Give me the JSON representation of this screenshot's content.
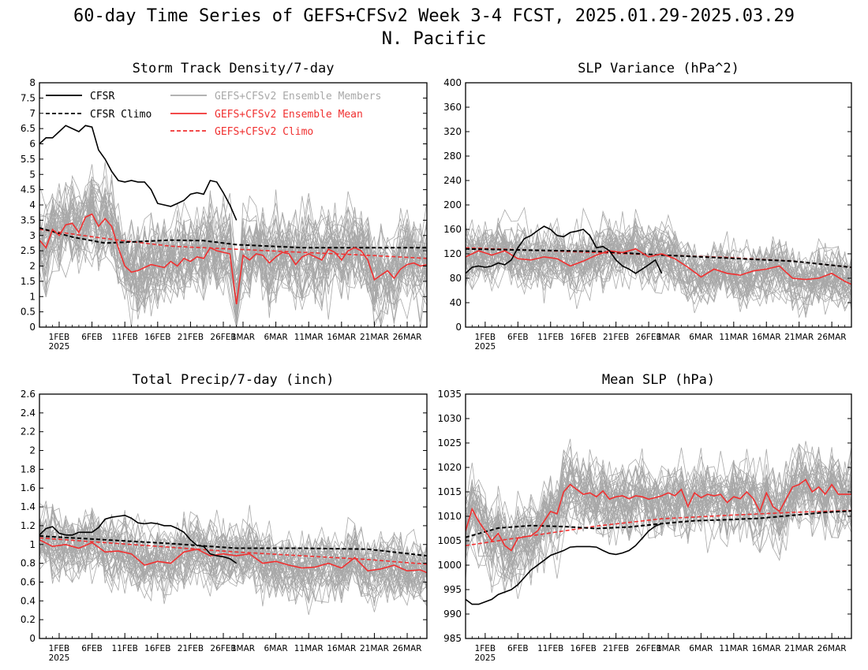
{
  "title_line1": "60-day Time Series of GEFS+CFSv2 Week 3-4 FCST, 2025.01.29-2025.03.29",
  "title_line2": "N. Pacific",
  "colors": {
    "cfsr": "#000000",
    "member": "#a8a8a8",
    "mean": "#f03030",
    "climo_model": "#f03030"
  },
  "legend": {
    "cfsr": "CFSR",
    "cfsr_climo": "CFSR Climo",
    "members": "GEFS+CFSv2 Ensemble Members",
    "mean": "GEFS+CFSv2 Ensemble Mean",
    "model_climo": "GEFS+CFSv2 Climo"
  },
  "x_ticks": [
    {
      "day": 3,
      "label": "1FEB",
      "sub": "2025"
    },
    {
      "day": 8,
      "label": "6FEB",
      "sub": ""
    },
    {
      "day": 13,
      "label": "11FEB",
      "sub": ""
    },
    {
      "day": 18,
      "label": "16FEB",
      "sub": ""
    },
    {
      "day": 23,
      "label": "21FEB",
      "sub": ""
    },
    {
      "day": 28,
      "label": "26FEB",
      "sub": ""
    },
    {
      "day": 31,
      "label": "1MAR",
      "sub": ""
    },
    {
      "day": 36,
      "label": "6MAR",
      "sub": ""
    },
    {
      "day": 41,
      "label": "11MAR",
      "sub": ""
    },
    {
      "day": 46,
      "label": "16MAR",
      "sub": ""
    },
    {
      "day": 51,
      "label": "21MAR",
      "sub": ""
    },
    {
      "day": 56,
      "label": "26MAR",
      "sub": ""
    }
  ],
  "chart_data": [
    {
      "type": "line",
      "title": "Storm Track Density/7-day",
      "ylim": [
        0,
        8
      ],
      "yticks": [
        "0",
        "0.5",
        "1",
        "1.5",
        "2",
        "2.5",
        "3",
        "3.5",
        "4",
        "4.5",
        "5",
        "5.5",
        "6",
        "6.5",
        "7",
        "7.5",
        "8"
      ],
      "xlim": [
        "2025-01-29",
        "2025-03-29"
      ],
      "member_spread": 0.85,
      "series": [
        {
          "key": "cfsr",
          "name": "CFSR",
          "x": [
            0,
            1,
            2,
            3,
            4,
            5,
            6,
            7,
            8,
            9,
            10,
            11,
            12,
            13,
            14,
            15,
            16,
            17,
            18,
            19,
            20,
            21,
            22,
            23,
            24,
            25,
            26,
            27,
            28,
            29,
            30
          ],
          "values": [
            6.0,
            6.2,
            6.2,
            6.4,
            6.6,
            6.5,
            6.4,
            6.6,
            6.55,
            5.8,
            5.5,
            5.1,
            4.8,
            4.75,
            4.8,
            4.75,
            4.75,
            4.5,
            4.05,
            4.0,
            3.95,
            4.05,
            4.15,
            4.35,
            4.4,
            4.35,
            4.8,
            4.75,
            4.4,
            4.0,
            3.5
          ]
        },
        {
          "key": "cfsr_climo",
          "name": "CFSR Climo",
          "x": [
            0,
            5,
            10,
            15,
            20,
            25,
            30,
            35,
            40,
            45,
            50,
            55,
            59
          ],
          "values": [
            3.25,
            2.95,
            2.75,
            2.8,
            2.85,
            2.83,
            2.7,
            2.65,
            2.6,
            2.6,
            2.6,
            2.6,
            2.6
          ]
        },
        {
          "key": "mean",
          "name": "GEFS+CFSv2 Ensemble Mean",
          "x": [
            0,
            1,
            2,
            3,
            4,
            5,
            6,
            7,
            8,
            9,
            10,
            11,
            12,
            13,
            14,
            15,
            16,
            17,
            18,
            19,
            20,
            21,
            22,
            23,
            24,
            25,
            26,
            27,
            28,
            29,
            30,
            31,
            32,
            33,
            34,
            35,
            36,
            37,
            38,
            39,
            40,
            41,
            42,
            43,
            44,
            45,
            46,
            47,
            48,
            49,
            50,
            51,
            52,
            53,
            54,
            55,
            56,
            57,
            58,
            59
          ],
          "values": [
            2.85,
            2.6,
            3.2,
            3.0,
            3.35,
            3.4,
            3.1,
            3.6,
            3.7,
            3.3,
            3.55,
            3.3,
            2.6,
            2.0,
            1.8,
            1.85,
            1.95,
            2.05,
            2.0,
            1.95,
            2.15,
            2.0,
            2.25,
            2.15,
            2.3,
            2.25,
            2.6,
            2.5,
            2.45,
            2.4,
            0.75,
            2.35,
            2.2,
            2.4,
            2.35,
            2.1,
            2.3,
            2.45,
            2.4,
            2.05,
            2.3,
            2.4,
            2.3,
            2.2,
            2.55,
            2.45,
            2.2,
            2.5,
            2.6,
            2.5,
            2.2,
            1.55,
            1.7,
            1.85,
            1.6,
            1.9,
            2.05,
            2.1,
            2.0,
            2.05
          ]
        },
        {
          "key": "climo_model",
          "name": "GEFS+CFSv2 Climo",
          "x": [
            0,
            10,
            20,
            30,
            40,
            50,
            59
          ],
          "values": [
            3.2,
            2.9,
            2.65,
            2.55,
            2.45,
            2.35,
            2.25
          ]
        }
      ]
    },
    {
      "type": "line",
      "title": "SLP Variance (hPa^2)",
      "ylim": [
        0,
        400
      ],
      "yticks": [
        "0",
        "40",
        "80",
        "120",
        "160",
        "200",
        "240",
        "280",
        "320",
        "360",
        "400"
      ],
      "xlim": [
        "2025-01-29",
        "2025-03-29"
      ],
      "member_spread": 28,
      "series": [
        {
          "key": "cfsr",
          "name": "CFSR",
          "x": [
            0,
            1,
            2,
            3,
            4,
            5,
            6,
            7,
            8,
            9,
            10,
            11,
            12,
            13,
            14,
            15,
            16,
            17,
            18,
            19,
            20,
            21,
            22,
            23,
            24,
            25,
            26,
            27,
            28,
            29,
            30
          ],
          "values": [
            88,
            98,
            100,
            98,
            100,
            105,
            102,
            110,
            130,
            145,
            150,
            158,
            165,
            160,
            150,
            148,
            155,
            157,
            160,
            150,
            130,
            132,
            125,
            110,
            100,
            95,
            88,
            95,
            102,
            110,
            88
          ]
        },
        {
          "key": "cfsr_climo",
          "name": "CFSR Climo",
          "x": [
            0,
            10,
            20,
            30,
            40,
            50,
            59
          ],
          "values": [
            128,
            126,
            124,
            118,
            113,
            108,
            98
          ]
        },
        {
          "key": "mean",
          "name": "GEFS+CFSv2 Ensemble Mean",
          "x": [
            0,
            2,
            4,
            6,
            8,
            10,
            12,
            14,
            16,
            18,
            20,
            22,
            24,
            26,
            28,
            30,
            32,
            34,
            36,
            38,
            40,
            42,
            44,
            46,
            48,
            50,
            52,
            54,
            56,
            58,
            59
          ],
          "values": [
            115,
            125,
            118,
            125,
            112,
            110,
            115,
            112,
            100,
            108,
            118,
            125,
            122,
            128,
            115,
            120,
            112,
            98,
            82,
            95,
            88,
            85,
            92,
            95,
            100,
            80,
            78,
            80,
            88,
            75,
            70
          ]
        },
        {
          "key": "climo_model",
          "name": "GEFS+CFSv2 Climo",
          "x": [
            0,
            10,
            20,
            30,
            40,
            50,
            59
          ],
          "values": [
            130,
            126,
            122,
            118,
            114,
            108,
            98
          ]
        }
      ]
    },
    {
      "type": "line",
      "title": "Total Precip/7-day (inch)",
      "ylim": [
        0,
        2.6
      ],
      "yticks": [
        "0",
        "0.2",
        "0.4",
        "0.6",
        "0.8",
        "1",
        "1.2",
        "1.4",
        "1.6",
        "1.8",
        "2",
        "2.2",
        "2.4",
        "2.6"
      ],
      "xlim": [
        "2025-01-29",
        "2025-03-29"
      ],
      "member_spread": 0.2,
      "series": [
        {
          "key": "cfsr",
          "name": "CFSR",
          "x": [
            0,
            1,
            2,
            3,
            4,
            5,
            6,
            7,
            8,
            9,
            10,
            11,
            12,
            13,
            14,
            15,
            16,
            17,
            18,
            19,
            20,
            21,
            22,
            23,
            24,
            25,
            26,
            27,
            28,
            29,
            30
          ],
          "values": [
            1.1,
            1.17,
            1.19,
            1.12,
            1.1,
            1.1,
            1.13,
            1.13,
            1.13,
            1.18,
            1.27,
            1.29,
            1.3,
            1.31,
            1.28,
            1.23,
            1.22,
            1.23,
            1.22,
            1.2,
            1.2,
            1.17,
            1.13,
            1.05,
            0.99,
            0.98,
            0.9,
            0.88,
            0.87,
            0.85,
            0.8
          ]
        },
        {
          "key": "cfsr_climo",
          "name": "CFSR Climo",
          "x": [
            0,
            10,
            20,
            30,
            40,
            50,
            59
          ],
          "values": [
            1.09,
            1.05,
            1.01,
            0.96,
            0.96,
            0.95,
            0.88
          ]
        },
        {
          "key": "mean",
          "name": "GEFS+CFSv2 Ensemble Mean",
          "x": [
            0,
            2,
            4,
            6,
            8,
            10,
            12,
            14,
            16,
            18,
            20,
            22,
            24,
            26,
            28,
            30,
            32,
            34,
            36,
            38,
            40,
            42,
            44,
            46,
            48,
            50,
            52,
            54,
            56,
            58,
            59
          ],
          "values": [
            1.05,
            0.98,
            1.0,
            0.96,
            1.02,
            0.92,
            0.93,
            0.9,
            0.78,
            0.82,
            0.8,
            0.92,
            0.95,
            0.88,
            0.9,
            0.88,
            0.9,
            0.8,
            0.82,
            0.78,
            0.75,
            0.76,
            0.8,
            0.75,
            0.86,
            0.72,
            0.74,
            0.78,
            0.72,
            0.73,
            0.7
          ]
        },
        {
          "key": "climo_model",
          "name": "GEFS+CFSv2 Climo",
          "x": [
            0,
            10,
            20,
            30,
            40,
            50,
            59
          ],
          "values": [
            1.07,
            1.02,
            0.97,
            0.92,
            0.88,
            0.84,
            0.79
          ]
        }
      ]
    },
    {
      "type": "line",
      "title": "Mean SLP (hPa)",
      "ylim": [
        985,
        1035
      ],
      "yticks": [
        "985",
        "990",
        "995",
        "1000",
        "1005",
        "1010",
        "1015",
        "1020",
        "1025",
        "1030",
        "1035"
      ],
      "xlim": [
        "2025-01-29",
        "2025-03-29"
      ],
      "member_spread": 4.5,
      "series": [
        {
          "key": "cfsr",
          "name": "CFSR",
          "x": [
            0,
            1,
            2,
            3,
            4,
            5,
            6,
            7,
            8,
            9,
            10,
            11,
            12,
            13,
            14,
            15,
            16,
            17,
            18,
            19,
            20,
            21,
            22,
            23,
            24,
            25,
            26,
            27,
            28,
            29,
            30
          ],
          "values": [
            993,
            992,
            992,
            992.5,
            993,
            994,
            994.5,
            995,
            996,
            997.5,
            999,
            1000,
            1001,
            1002,
            1002.5,
            1003,
            1003.7,
            1003.8,
            1003.8,
            1003.8,
            1003.7,
            1003,
            1002.4,
            1002.2,
            1002.5,
            1003,
            1004,
            1005.5,
            1007,
            1008,
            1008.5
          ]
        },
        {
          "key": "cfsr_climo",
          "name": "CFSR Climo",
          "x": [
            0,
            5,
            10,
            15,
            20,
            25,
            30,
            35,
            40,
            45,
            50,
            55,
            59
          ],
          "values": [
            1005.7,
            1007.6,
            1008.1,
            1007.9,
            1007.5,
            1007.8,
            1008.5,
            1009.1,
            1009.3,
            1009.6,
            1010.2,
            1010.8,
            1011.1
          ]
        },
        {
          "key": "mean",
          "name": "GEFS+CFSv2 Ensemble Mean",
          "x": [
            0,
            1,
            2,
            3,
            4,
            5,
            6,
            7,
            8,
            9,
            10,
            11,
            12,
            13,
            14,
            15,
            16,
            17,
            18,
            19,
            20,
            21,
            22,
            23,
            24,
            25,
            26,
            27,
            28,
            29,
            30,
            31,
            32,
            33,
            34,
            35,
            36,
            37,
            38,
            39,
            40,
            41,
            42,
            43,
            44,
            45,
            46,
            47,
            48,
            49,
            50,
            51,
            52,
            53,
            54,
            55,
            56,
            57,
            58,
            59
          ],
          "values": [
            1007,
            1011.5,
            1009,
            1007,
            1005,
            1006.5,
            1004,
            1003,
            1005.5,
            1005.8,
            1006,
            1007,
            1009,
            1011,
            1010.5,
            1015,
            1016.5,
            1015.5,
            1014.5,
            1014.8,
            1014,
            1015.2,
            1013.5,
            1014,
            1014.2,
            1013.6,
            1014.2,
            1014,
            1013.5,
            1013.8,
            1014.2,
            1014.8,
            1014.2,
            1015.5,
            1012,
            1014.8,
            1013.8,
            1014.5,
            1014.2,
            1014.5,
            1012.8,
            1014,
            1013.6,
            1015,
            1013.6,
            1011,
            1014.8,
            1012,
            1011,
            1013.5,
            1016,
            1016.5,
            1017.5,
            1015,
            1016,
            1014.5,
            1016.5,
            1014.5,
            1014.5,
            1014.5
          ]
        },
        {
          "key": "climo_model",
          "name": "GEFS+CFSv2 Climo",
          "x": [
            0,
            10,
            20,
            30,
            40,
            50,
            59
          ],
          "values": [
            1004,
            1006,
            1008,
            1009.5,
            1010.2,
            1010.8,
            1011.2
          ]
        }
      ]
    }
  ]
}
